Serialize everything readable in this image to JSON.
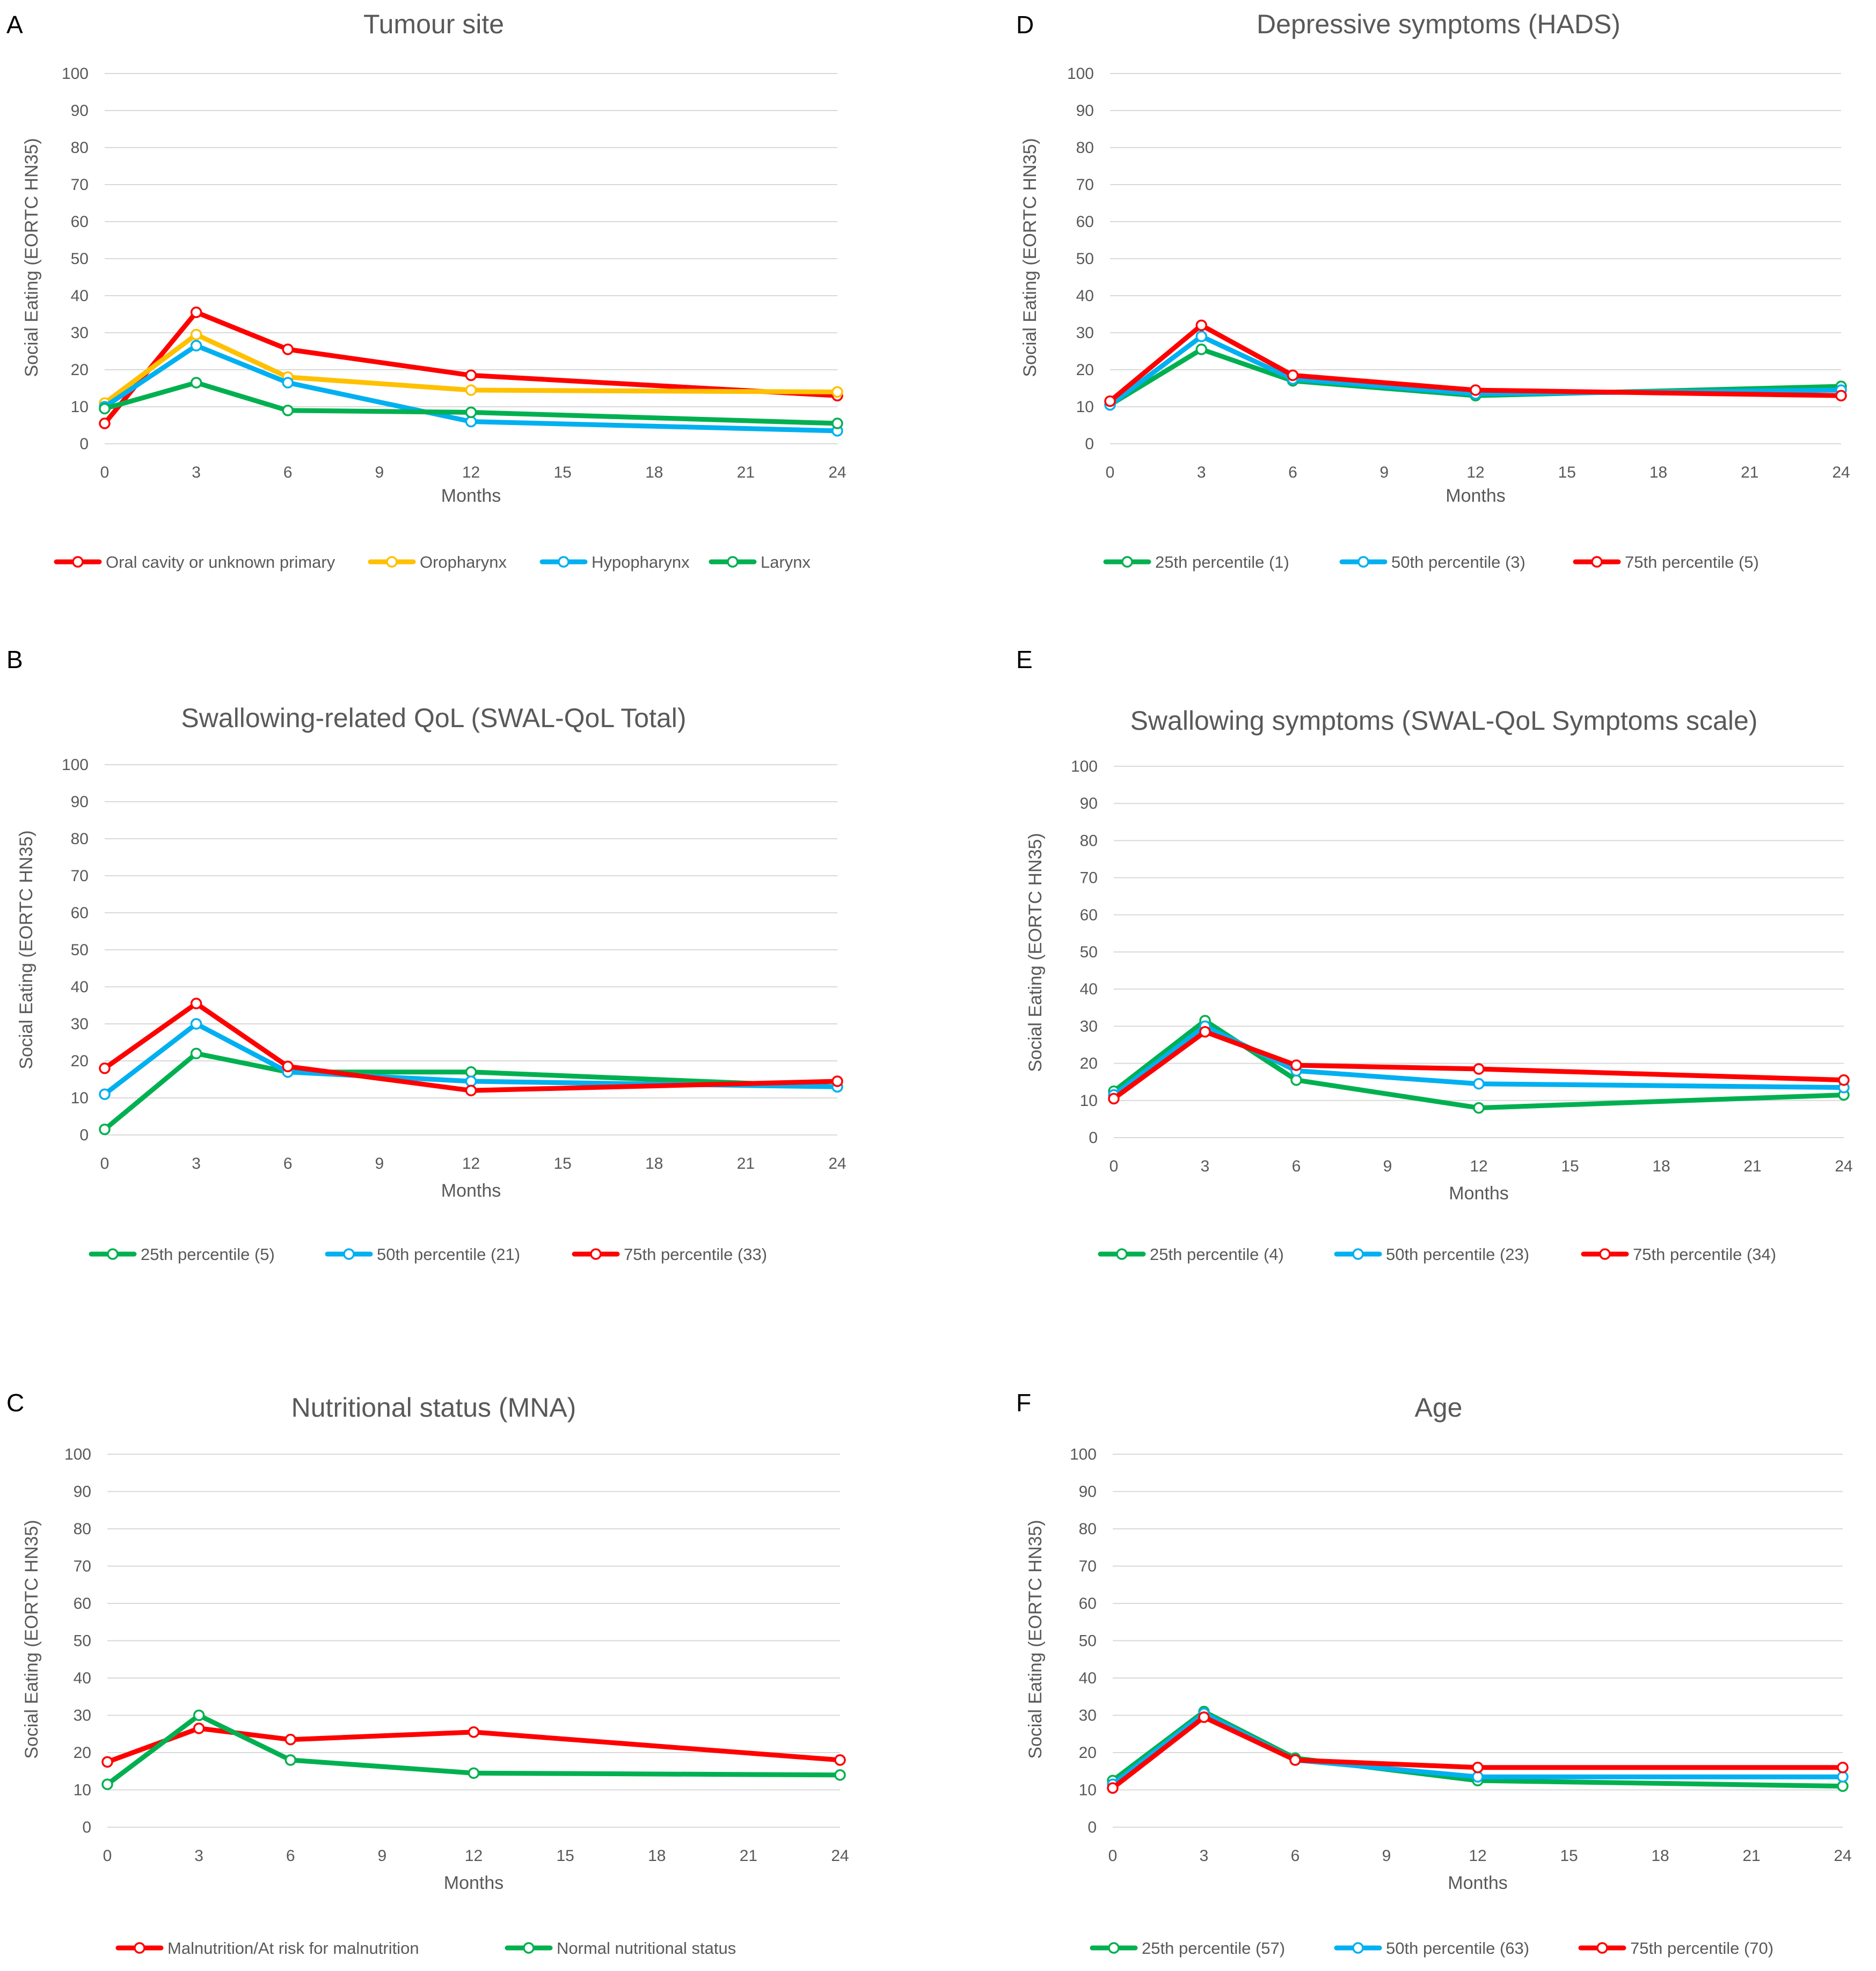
{
  "chart_data": [
    {
      "panel": "A",
      "type": "line",
      "title": "Tumour site",
      "xlabel": "Months",
      "ylabel": "Social Eating (EORTC HN35)",
      "x": [
        0,
        3,
        6,
        12,
        24
      ],
      "xticks": [
        0,
        3,
        6,
        9,
        12,
        15,
        18,
        21,
        24
      ],
      "yticks": [
        0,
        10,
        20,
        30,
        40,
        50,
        60,
        70,
        80,
        90,
        100
      ],
      "xlim": [
        0,
        24
      ],
      "ylim": [
        0,
        100
      ],
      "grid": true,
      "legend": "bottom",
      "series": [
        {
          "name": "Oral cavity or unknown primary",
          "color": "#ff0000",
          "values": [
            5.5,
            35.5,
            25.5,
            18.5,
            13
          ]
        },
        {
          "name": "Oropharynx",
          "color": "#ffc000",
          "values": [
            11,
            29.5,
            18,
            14.5,
            14
          ]
        },
        {
          "name": "Hypopharynx",
          "color": "#00b0f0",
          "values": [
            10,
            26.5,
            16.5,
            6,
            3.5
          ]
        },
        {
          "name": "Larynx",
          "color": "#00b050",
          "values": [
            9.5,
            16.5,
            9,
            8.5,
            5.5
          ]
        }
      ]
    },
    {
      "panel": "B",
      "type": "line",
      "title": "Swallowing-related QoL (SWAL-QoL Total)",
      "xlabel": "Months",
      "ylabel": "Social Eating (EORTC HN35)",
      "x": [
        0,
        3,
        6,
        12,
        24
      ],
      "xticks": [
        0,
        3,
        6,
        9,
        12,
        15,
        18,
        21,
        24
      ],
      "yticks": [
        0,
        10,
        20,
        30,
        40,
        50,
        60,
        70,
        80,
        90,
        100
      ],
      "xlim": [
        0,
        24
      ],
      "ylim": [
        0,
        100
      ],
      "grid": true,
      "legend": "bottom",
      "series": [
        {
          "name": "25th percentile (5)",
          "color": "#00b050",
          "values": [
            1.5,
            22,
            17,
            17,
            13
          ]
        },
        {
          "name": "50th percentile (21)",
          "color": "#00b0f0",
          "values": [
            11,
            30,
            17,
            14.5,
            13
          ]
        },
        {
          "name": "75th percentile (33)",
          "color": "#ff0000",
          "values": [
            18,
            35.5,
            18.5,
            12,
            14.5
          ]
        }
      ]
    },
    {
      "panel": "C",
      "type": "line",
      "title": "Nutritional status (MNA)",
      "xlabel": "Months",
      "ylabel": "Social Eating (EORTC HN35)",
      "x": [
        0,
        3,
        6,
        12,
        24
      ],
      "xticks": [
        0,
        3,
        6,
        9,
        12,
        15,
        18,
        21,
        24
      ],
      "yticks": [
        0,
        10,
        20,
        30,
        40,
        50,
        60,
        70,
        80,
        90,
        100
      ],
      "xlim": [
        0,
        24
      ],
      "ylim": [
        0,
        100
      ],
      "grid": true,
      "legend": "bottom",
      "series": [
        {
          "name": "Malnutrition/At risk for malnutrition",
          "color": "#ff0000",
          "values": [
            17.5,
            26.5,
            23.5,
            25.5,
            18
          ]
        },
        {
          "name": "Normal nutritional status",
          "color": "#00b050",
          "values": [
            11.5,
            30,
            18,
            14.5,
            14
          ]
        }
      ]
    },
    {
      "panel": "D",
      "type": "line",
      "title": "Depressive symptoms (HADS)",
      "xlabel": "Months",
      "ylabel": "Social Eating (EORTC HN35)",
      "x": [
        0,
        3,
        6,
        12,
        24
      ],
      "xticks": [
        0,
        3,
        6,
        9,
        12,
        15,
        18,
        21,
        24
      ],
      "yticks": [
        0,
        10,
        20,
        30,
        40,
        50,
        60,
        70,
        80,
        90,
        100
      ],
      "xlim": [
        0,
        24
      ],
      "ylim": [
        0,
        100
      ],
      "grid": true,
      "legend": "bottom",
      "series": [
        {
          "name": "25th percentile (1)",
          "color": "#00b050",
          "values": [
            10.5,
            25.5,
            17,
            13,
            15.5
          ]
        },
        {
          "name": "50th percentile (3)",
          "color": "#00b0f0",
          "values": [
            10.5,
            29,
            17.5,
            13.5,
            14.5
          ]
        },
        {
          "name": "75th percentile (5)",
          "color": "#ff0000",
          "values": [
            11.5,
            32,
            18.5,
            14.5,
            13
          ]
        }
      ]
    },
    {
      "panel": "E",
      "type": "line",
      "title": "Swallowing symptoms (SWAL-QoL Symptoms scale)",
      "xlabel": "Months",
      "ylabel": "Social Eating (EORTC HN35)",
      "x": [
        0,
        3,
        6,
        12,
        24
      ],
      "xticks": [
        0,
        3,
        6,
        9,
        12,
        15,
        18,
        21,
        24
      ],
      "yticks": [
        0,
        10,
        20,
        30,
        40,
        50,
        60,
        70,
        80,
        90,
        100
      ],
      "xlim": [
        0,
        24
      ],
      "ylim": [
        0,
        100
      ],
      "grid": true,
      "legend": "bottom",
      "series": [
        {
          "name": "25th percentile (4)",
          "color": "#00b050",
          "values": [
            12.5,
            31.5,
            15.5,
            8,
            11.5
          ]
        },
        {
          "name": "50th percentile (23)",
          "color": "#00b0f0",
          "values": [
            11.5,
            30,
            18,
            14.5,
            13.5
          ]
        },
        {
          "name": "75th percentile (34)",
          "color": "#ff0000",
          "values": [
            10.5,
            28.5,
            19.5,
            18.5,
            15.5
          ]
        }
      ]
    },
    {
      "panel": "F",
      "type": "line",
      "title": "Age",
      "xlabel": "Months",
      "ylabel": "Social Eating (EORTC HN35)",
      "x": [
        0,
        3,
        6,
        12,
        24
      ],
      "xticks": [
        0,
        3,
        6,
        9,
        12,
        15,
        18,
        21,
        24
      ],
      "yticks": [
        0,
        10,
        20,
        30,
        40,
        50,
        60,
        70,
        80,
        90,
        100
      ],
      "xlim": [
        0,
        24
      ],
      "ylim": [
        0,
        100
      ],
      "grid": true,
      "legend": "bottom",
      "series": [
        {
          "name": "25th percentile (57)",
          "color": "#00b050",
          "values": [
            12.5,
            31,
            18.5,
            12.5,
            11
          ]
        },
        {
          "name": "50th percentile (63)",
          "color": "#00b0f0",
          "values": [
            11.5,
            30.5,
            18,
            13.5,
            13.5
          ]
        },
        {
          "name": "75th percentile (70)",
          "color": "#ff0000",
          "values": [
            10.5,
            29.5,
            18,
            16,
            16
          ]
        }
      ]
    }
  ]
}
